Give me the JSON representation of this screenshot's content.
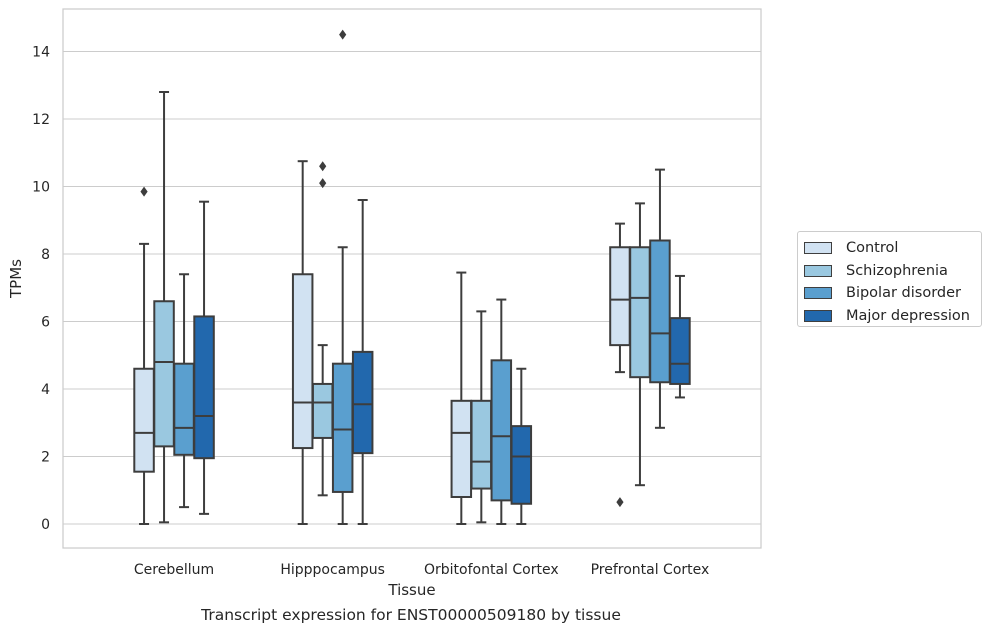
{
  "chart_data": {
    "type": "box",
    "caption": "Transcript expression for ENST00000509180 by tissue",
    "xlabel": "Tissue",
    "ylabel": "TPMs",
    "ylim": [
      -0.7,
      15.2
    ],
    "yticks": [
      0,
      2,
      4,
      6,
      8,
      10,
      12,
      14
    ],
    "grid": "horizontal",
    "legend_position": "right",
    "categories": [
      "Cerebellum",
      "Hipppocampus",
      "Orbitofontal Cortex",
      "Prefrontal Cortex"
    ],
    "series": [
      {
        "name": "Control",
        "color": "#d1e2f2",
        "boxes": [
          {
            "whisker_low": 0.0,
            "q1": 1.55,
            "median": 2.7,
            "q3": 4.6,
            "whisker_high": 8.3,
            "outliers": [
              9.85
            ]
          },
          {
            "whisker_low": 0.0,
            "q1": 2.25,
            "median": 3.6,
            "q3": 7.4,
            "whisker_high": 10.75,
            "outliers": []
          },
          {
            "whisker_low": 0.0,
            "q1": 0.8,
            "median": 2.7,
            "q3": 3.65,
            "whisker_high": 7.45,
            "outliers": []
          },
          {
            "whisker_low": 4.5,
            "q1": 5.3,
            "median": 6.65,
            "q3": 8.2,
            "whisker_high": 8.9,
            "outliers": [
              0.65
            ]
          }
        ]
      },
      {
        "name": "Schizophrenia",
        "color": "#9ac8e0",
        "boxes": [
          {
            "whisker_low": 0.05,
            "q1": 2.3,
            "median": 4.8,
            "q3": 6.6,
            "whisker_high": 12.8,
            "outliers": []
          },
          {
            "whisker_low": 0.85,
            "q1": 2.55,
            "median": 3.6,
            "q3": 4.15,
            "whisker_high": 5.3,
            "outliers": [
              10.1,
              10.6
            ]
          },
          {
            "whisker_low": 0.05,
            "q1": 1.05,
            "median": 1.85,
            "q3": 3.65,
            "whisker_high": 6.3,
            "outliers": []
          },
          {
            "whisker_low": 1.15,
            "q1": 4.35,
            "median": 6.7,
            "q3": 8.2,
            "whisker_high": 9.5,
            "outliers": []
          }
        ]
      },
      {
        "name": "Bipolar disorder",
        "color": "#5a9fcf",
        "boxes": [
          {
            "whisker_low": 0.5,
            "q1": 2.05,
            "median": 2.85,
            "q3": 4.75,
            "whisker_high": 7.4,
            "outliers": []
          },
          {
            "whisker_low": 0.0,
            "q1": 0.95,
            "median": 2.8,
            "q3": 4.75,
            "whisker_high": 8.2,
            "outliers": [
              14.5
            ]
          },
          {
            "whisker_low": 0.0,
            "q1": 0.7,
            "median": 2.6,
            "q3": 4.85,
            "whisker_high": 6.65,
            "outliers": []
          },
          {
            "whisker_low": 2.85,
            "q1": 4.2,
            "median": 5.65,
            "q3": 8.4,
            "whisker_high": 10.5,
            "outliers": []
          }
        ]
      },
      {
        "name": "Major depression",
        "color": "#2268ad",
        "boxes": [
          {
            "whisker_low": 0.3,
            "q1": 1.95,
            "median": 3.2,
            "q3": 6.15,
            "whisker_high": 9.55,
            "outliers": []
          },
          {
            "whisker_low": 0.0,
            "q1": 2.1,
            "median": 3.55,
            "q3": 5.1,
            "whisker_high": 9.6,
            "outliers": []
          },
          {
            "whisker_low": 0.0,
            "q1": 0.6,
            "median": 2.0,
            "q3": 2.9,
            "whisker_high": 4.6,
            "outliers": []
          },
          {
            "whisker_low": 3.75,
            "q1": 4.15,
            "median": 4.75,
            "q3": 6.1,
            "whisker_high": 7.35,
            "outliers": []
          }
        ]
      }
    ]
  }
}
